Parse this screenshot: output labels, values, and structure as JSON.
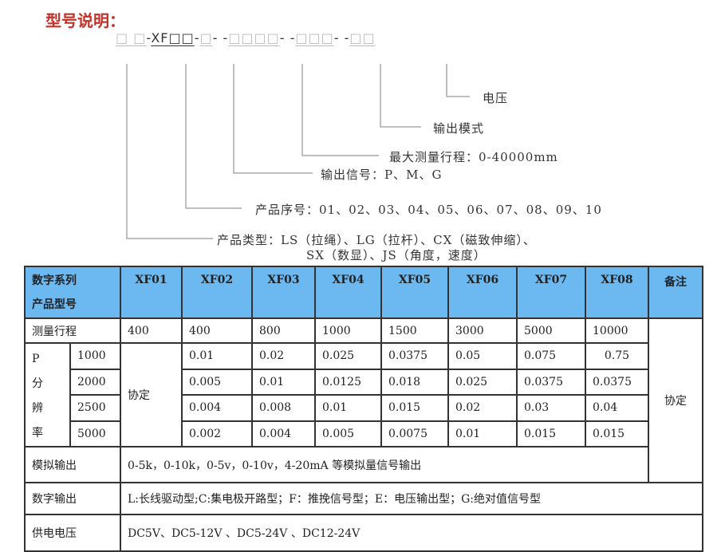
{
  "title": "型号说明：",
  "model_code": {
    "segments": [
      "□ □",
      "XF□□",
      "□",
      "□□□□",
      "□□□",
      "□□"
    ],
    "separators": [
      "-",
      "-",
      "- -",
      "- -",
      "- -"
    ]
  },
  "legend": [
    "电压",
    "输出模式",
    "最大测量行程：0-40000mm",
    "输出信号：P、M、G",
    "产品序号：01、02、03、04、05、06、07、08、09、10",
    "产品类型：LS（拉绳）、LG（拉杆）、CX（磁致伸缩）、",
    "SX（数显）、JS（角度，速度）"
  ],
  "table": {
    "header_color": "#6cb8f0",
    "header_label_1": "数字系列",
    "header_label_2": "产品型号",
    "models": [
      "XF01",
      "XF02",
      "XF03",
      "XF04",
      "XF05",
      "XF06",
      "XF07",
      "XF08"
    ],
    "remark_header": "备注",
    "stroke_label": "测量行程",
    "strokes": [
      "400",
      "400",
      "800",
      "1000",
      "1500",
      "3000",
      "5000",
      "10000"
    ],
    "remark_value": "协定",
    "resolution_label": [
      "P",
      "分",
      "辨",
      "率"
    ],
    "xf01_resolution": "协定",
    "resolution_rows": [
      {
        "p": "1000",
        "values": [
          "0.01",
          "0.02",
          "0.025",
          "0.0375",
          "0.05",
          "0.075",
          "0.75"
        ]
      },
      {
        "p": "2000",
        "values": [
          "0.005",
          "0.01",
          "0.0125",
          "0.018",
          "0.025",
          "0.0375",
          "0.0375"
        ]
      },
      {
        "p": "2500",
        "values": [
          "0.004",
          "0.008",
          "0.01",
          "0.015",
          "0.02",
          "0.03",
          "0.04"
        ]
      },
      {
        "p": "5000",
        "values": [
          "0.002",
          "0.004",
          "0.005",
          "0.0075",
          "0.01",
          "0.015",
          "0.015"
        ]
      }
    ],
    "analog_label": "模拟输出",
    "analog_value": "0-5k，0-10k，0-5v，0-10v，4-20mA 等模拟量信号输出",
    "digital_label": "数字输出",
    "digital_value": "L:长线驱动型;C:集电极开路型；F：推挽信号型；E：电压输出型；G:绝对值信号型",
    "power_label": "供电电压",
    "power_value": "DC5V、DC5-12V 、DC5-24V 、DC12-24V"
  }
}
